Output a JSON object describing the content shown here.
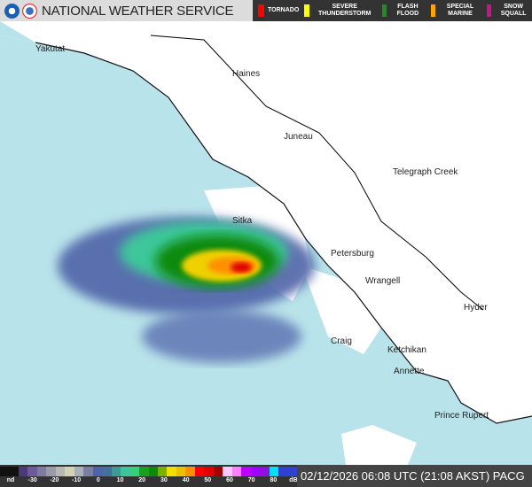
{
  "header": {
    "title": "NATIONAL WEATHER SERVICE",
    "legend": [
      {
        "label": "TORNADO",
        "color": "#ff0000"
      },
      {
        "label": "SEVERE THUNDERSTORM",
        "color": "#ffff00"
      },
      {
        "label": "FLASH FLOOD",
        "color": "#228b22"
      },
      {
        "label": "SPECIAL MARINE",
        "color": "#ffa500"
      },
      {
        "label": "SNOW SQUALL",
        "color": "#c71585"
      }
    ]
  },
  "map": {
    "colors": {
      "ocean": "#b9e3ea",
      "land": "#ffffff"
    },
    "cities": [
      "Yakutat",
      "Haines",
      "Juneau",
      "Telegraph Creek",
      "Sitka",
      "Petersburg",
      "Wrangell",
      "Hyder",
      "Craig",
      "Ketchikan",
      "Annette",
      "Prince Rupert"
    ]
  },
  "scale": {
    "ticks": [
      "nd",
      "-30",
      "-20",
      "-10",
      "0",
      "10",
      "20",
      "30",
      "40",
      "50",
      "60",
      "70",
      "80",
      "dBZ"
    ],
    "colors": [
      "#111",
      "#111",
      "#4b3a73",
      "#6e5a9a",
      "#7f7aa0",
      "#9a9aa8",
      "#b8b8b0",
      "#d2d2b4",
      "#a8b0b8",
      "#7b7fa8",
      "#4f63a8",
      "#4470a0",
      "#3e9a98",
      "#3cc79a",
      "#35d07a",
      "#1aa01a",
      "#0c8a0c",
      "#7ab000",
      "#f0e000",
      "#f0c000",
      "#ff9000",
      "#ff0000",
      "#e00000",
      "#a00000",
      "#ffc8ff",
      "#ff80ff",
      "#c000ff",
      "#a000ff",
      "#9010e0",
      "#00e0f0",
      "#3040d0",
      "#3040d0"
    ]
  },
  "timestamp": "02/12/2026 06:08 UTC (21:08 AKST) PACG"
}
